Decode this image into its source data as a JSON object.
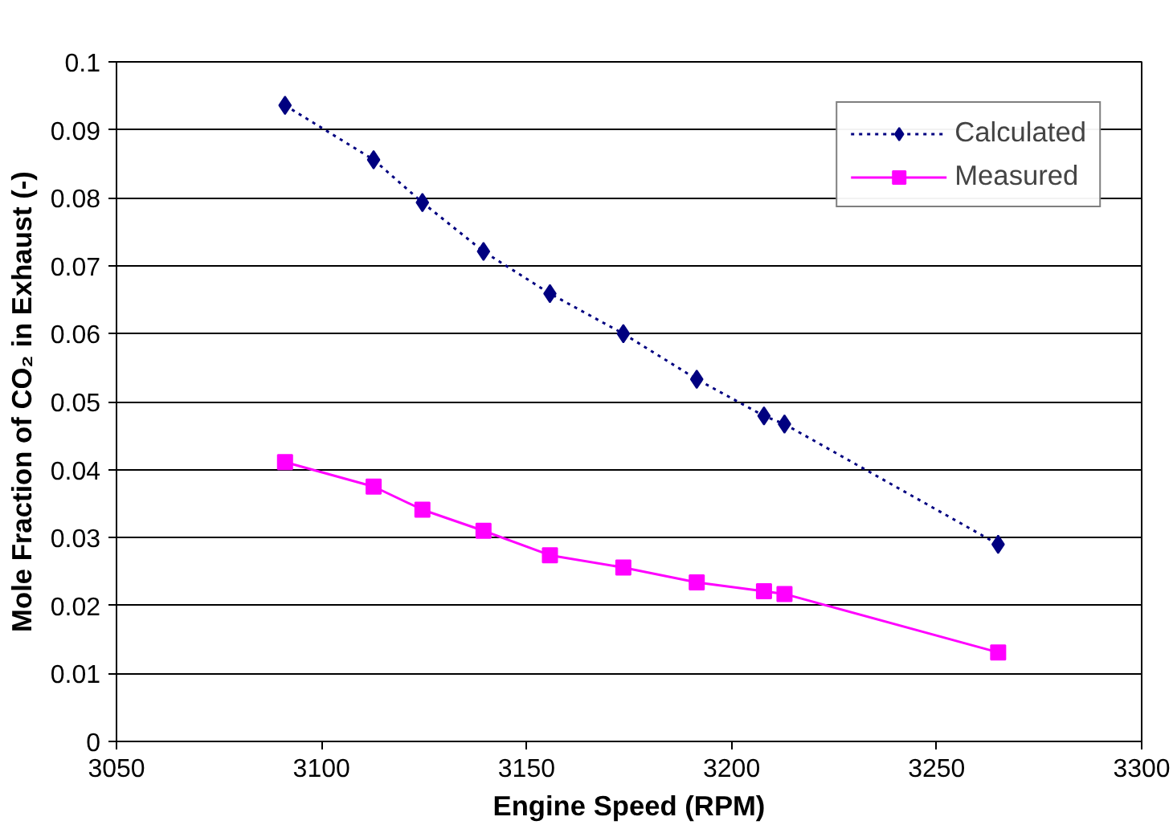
{
  "chart_data": {
    "type": "line",
    "xlabel": "Engine Speed (RPM)",
    "ylabel": "Mole Fraction of CO₂ in Exhaust (-)",
    "xlim": [
      3050,
      3300
    ],
    "xticks": [
      3050,
      3100,
      3150,
      3200,
      3250,
      3300
    ],
    "ylim": [
      0,
      0.1
    ],
    "yticks": [
      0,
      0.01,
      0.02,
      0.03,
      0.04,
      0.05,
      0.06,
      0.07,
      0.08,
      0.09,
      0.1
    ],
    "grid": "y",
    "legend": "top right",
    "series": [
      {
        "name": "Calculated",
        "color": "#000080",
        "marker": "diamond",
        "line_style": "dotted",
        "x": [
          3091.1,
          3112.7,
          3124.6,
          3139.5,
          3155.7,
          3173.6,
          3191.5,
          3207.9,
          3212.9,
          3265
        ],
        "values": [
          0.0936,
          0.0856,
          0.0793,
          0.0721,
          0.0659,
          0.06,
          0.0533,
          0.0479,
          0.0467,
          0.029
        ]
      },
      {
        "name": "Measured",
        "color": "#ff00ff",
        "marker": "square",
        "line_style": "solid",
        "x": [
          3091.1,
          3112.7,
          3124.6,
          3139.5,
          3155.7,
          3173.6,
          3191.5,
          3207.9,
          3212.9,
          3265
        ],
        "values": [
          0.0411,
          0.0375,
          0.0341,
          0.031,
          0.0274,
          0.0256,
          0.0234,
          0.0221,
          0.0217,
          0.0131
        ]
      }
    ]
  }
}
